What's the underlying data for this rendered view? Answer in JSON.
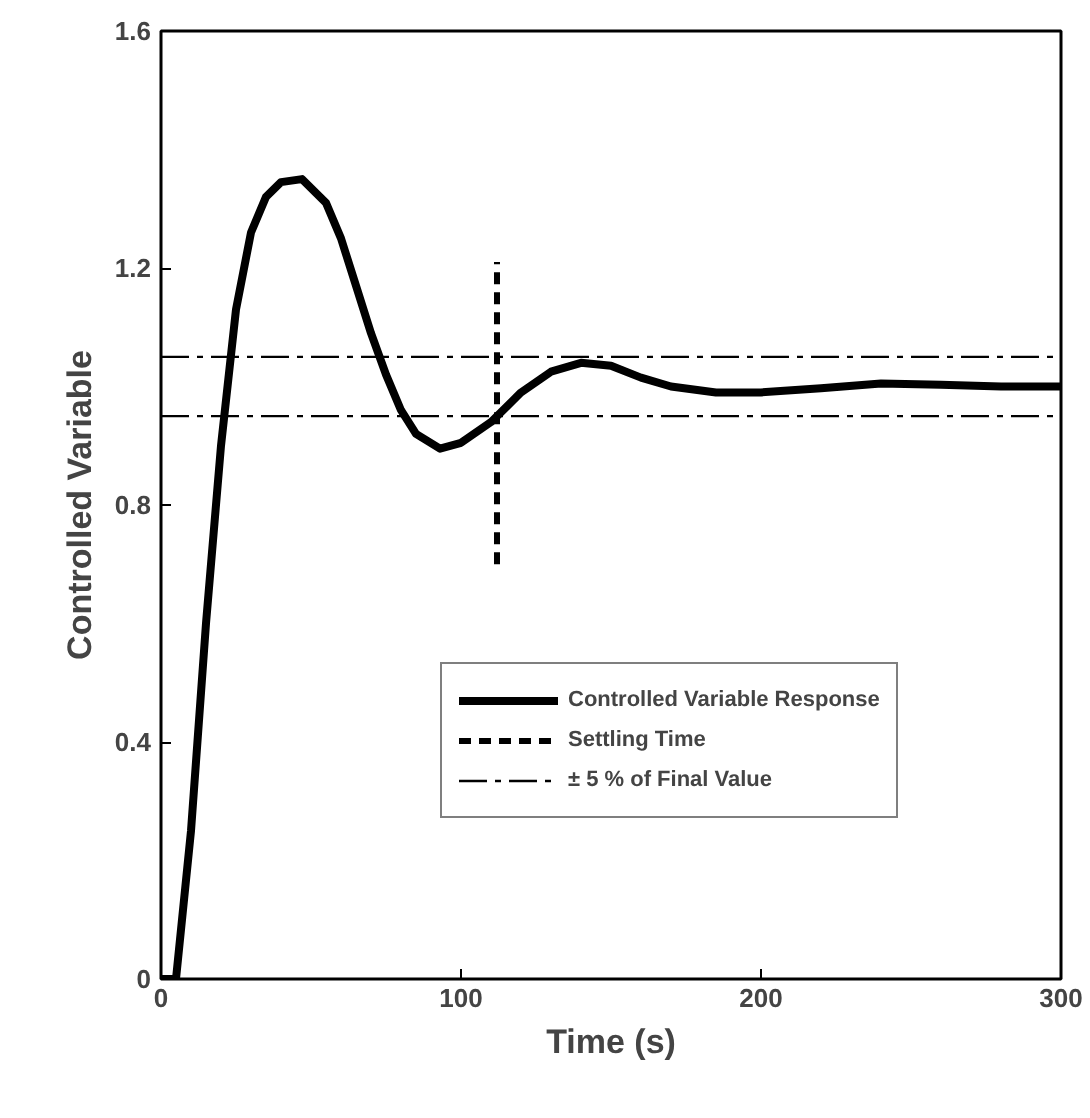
{
  "chart_data": {
    "type": "line",
    "xlabel": "Time (s)",
    "ylabel": "Controlled Variable",
    "xlim": [
      0,
      300
    ],
    "ylim": [
      0,
      1.6
    ],
    "xticks": [
      0,
      100,
      200,
      300
    ],
    "yticks": [
      0,
      0.4,
      0.8,
      1.2,
      1.6
    ],
    "grid": false,
    "legend": "right",
    "series": [
      {
        "name": "Controlled Variable Response",
        "color": "#000000",
        "line_style": "solid",
        "x": [
          0,
          5,
          10,
          15,
          20,
          25,
          30,
          35,
          40,
          47,
          55,
          60,
          65,
          70,
          75,
          80,
          85,
          93,
          100,
          110,
          120,
          130,
          140,
          150,
          160,
          170,
          185,
          200,
          220,
          240,
          260,
          280,
          300
        ],
        "values": [
          0,
          0,
          0.25,
          0.6,
          0.9,
          1.13,
          1.26,
          1.32,
          1.345,
          1.35,
          1.31,
          1.25,
          1.17,
          1.09,
          1.02,
          0.96,
          0.92,
          0.895,
          0.905,
          0.94,
          0.99,
          1.025,
          1.04,
          1.035,
          1.015,
          1.0,
          0.99,
          0.99,
          0.997,
          1.005,
          1.003,
          1.0,
          1.0
        ]
      },
      {
        "name": "Settling Time",
        "color": "#000000",
        "line_style": "dashed",
        "x": [
          112,
          112
        ],
        "values": [
          0.7,
          1.21
        ]
      }
    ],
    "ref_lines": [
      {
        "axis": "y",
        "value": 1.05,
        "label": "± 5 % of Final Value",
        "color": "#000000",
        "line_style": "dashdot"
      },
      {
        "axis": "y",
        "value": 0.95,
        "color": "#000000",
        "line_style": "dashdot"
      }
    ]
  }
}
